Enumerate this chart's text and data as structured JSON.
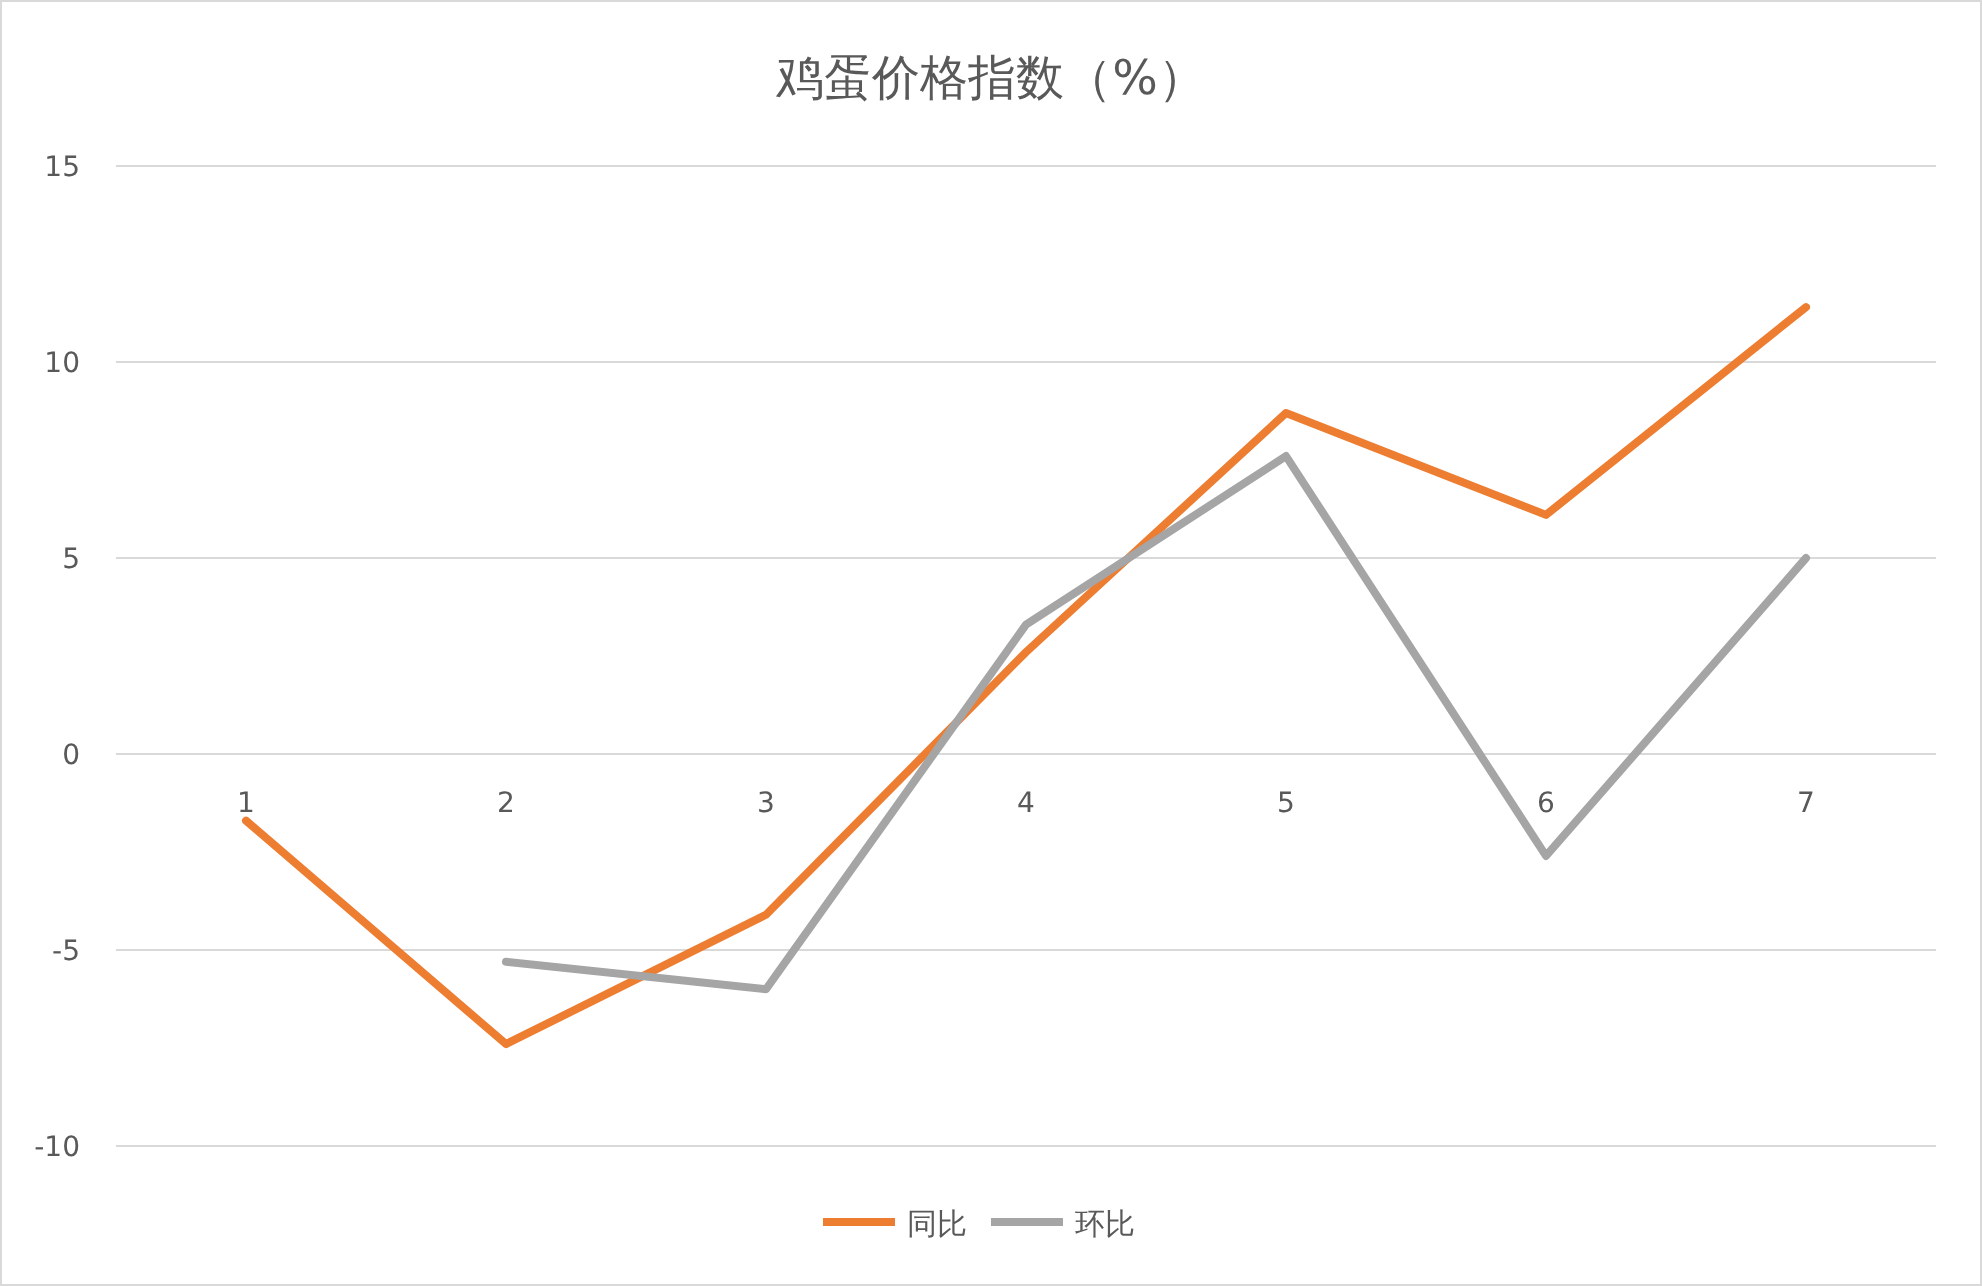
{
  "chart_data": {
    "type": "line",
    "title": "鸡蛋价格指数（%）",
    "categories": [
      "1",
      "2",
      "3",
      "4",
      "5",
      "6",
      "7"
    ],
    "series": [
      {
        "name": "同比",
        "color": "#ed7d31",
        "values": [
          -1.7,
          -7.4,
          -4.1,
          2.6,
          8.7,
          6.1,
          11.4
        ]
      },
      {
        "name": "环比",
        "color": "#a5a5a5",
        "values": [
          null,
          -5.3,
          -6.0,
          3.3,
          7.6,
          -2.6,
          5.0
        ]
      }
    ],
    "ylim": [
      -10,
      15
    ],
    "yticks": [
      -10,
      -5,
      0,
      5,
      10,
      15
    ],
    "grid": "y",
    "legend": "bottom"
  }
}
